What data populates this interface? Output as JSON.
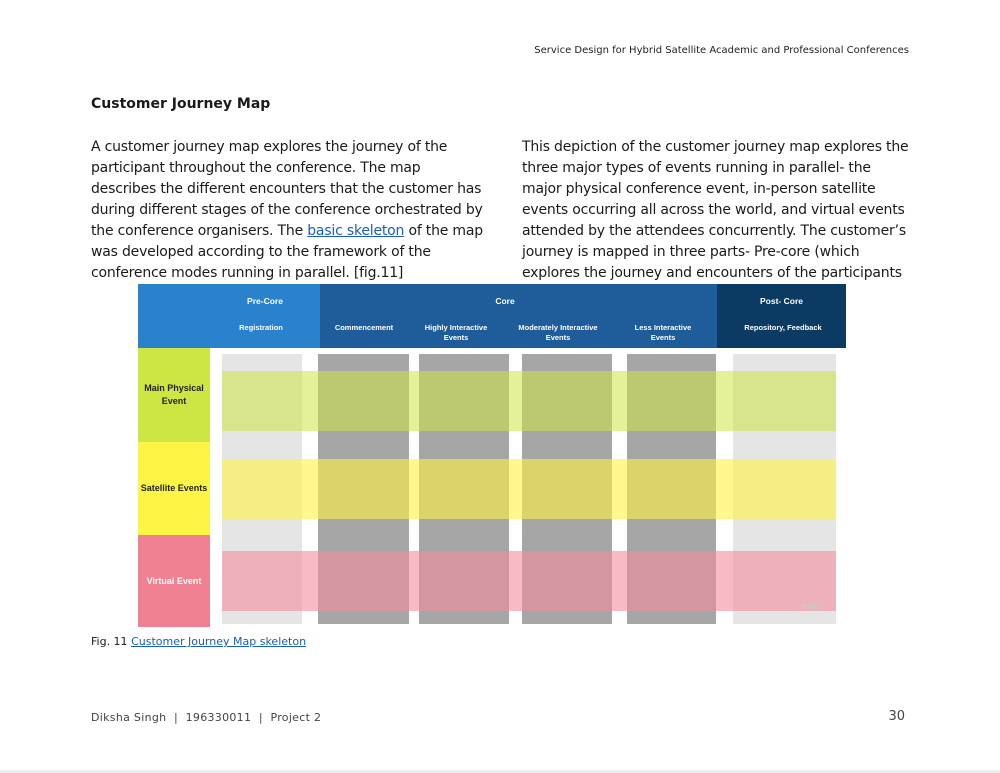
{
  "header": {
    "running_title": "Service Design for Hybrid Satellite Academic and Professional Conferences"
  },
  "section": {
    "title": "Customer Journey Map"
  },
  "left_column": {
    "text_before_link": "A customer journey map explores the journey of the participant throughout the conference. The map describes the different encounters that the customer has during different stages of the conference orchestrated by the conference organisers. The ",
    "link": "basic skeleton",
    "text_after_link": " of the map was developed according to the framework of the conference modes running in parallel. [fig.11]"
  },
  "right_column": {
    "text": "This depiction of the customer journey map explores the three major types of events running in parallel- the major physical conference event, in-person satellite events occurring all across the world, and virtual events attended by the attendees concurrently. The customer’s journey is mapped in three parts- Pre-core (which explores the journey and encounters of the participants"
  },
  "figure": {
    "phases": [
      "Pre-Core",
      "Core",
      "Post- Core"
    ],
    "stages": [
      "Registration",
      "Commencement",
      "Highly Interactive Events",
      "Moderately Interactive Events",
      "Less Interactive Events",
      "Repository, Feedback"
    ],
    "rows": [
      "Main Physical Event",
      "Satellite Events",
      "Virtual Event"
    ],
    "watermark": "miro",
    "colors": {
      "precore": "#2b82cc",
      "core": "#1e5d9a",
      "postcore": "#0b3a63",
      "green": "#cde643",
      "yellow": "#fdf445",
      "pink": "#ef8193"
    }
  },
  "caption": {
    "label": "Fig. 11 ",
    "link": "Customer Journey Map skeleton"
  },
  "footer": {
    "author": "Diksha Singh  |  196330011  |  Project 2",
    "page": "30"
  }
}
